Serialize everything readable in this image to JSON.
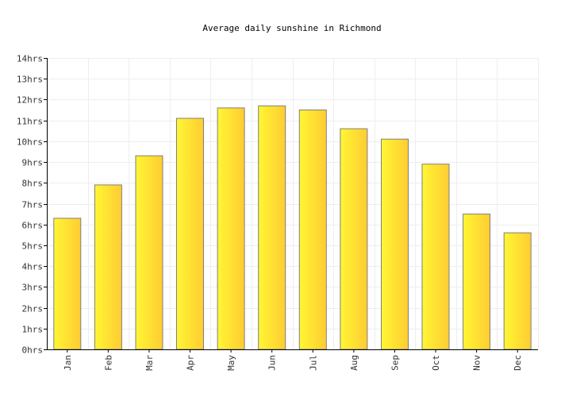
{
  "chart_data": {
    "type": "bar",
    "title": "Average daily sunshine in Richmond",
    "xlabel": "",
    "ylabel": "",
    "categories": [
      "Jan",
      "Feb",
      "Mar",
      "Apr",
      "May",
      "Jun",
      "Jul",
      "Aug",
      "Sep",
      "Oct",
      "Nov",
      "Dec"
    ],
    "values": [
      6.3,
      7.9,
      9.3,
      11.1,
      11.6,
      11.7,
      11.5,
      10.6,
      10.1,
      8.9,
      6.5,
      5.6
    ],
    "ylim": [
      0,
      14
    ],
    "yticks": [
      0,
      1,
      2,
      3,
      4,
      5,
      6,
      7,
      8,
      9,
      10,
      11,
      12,
      13,
      14
    ],
    "ytick_suffix": "hrs",
    "grid": true,
    "legend": "none",
    "bar_color_light": "#fff633",
    "bar_color_dark": "#ffcc33",
    "bar_stroke": "#7f7f7f",
    "grid_color": "#eeeeee",
    "axis_color": "#000000"
  }
}
